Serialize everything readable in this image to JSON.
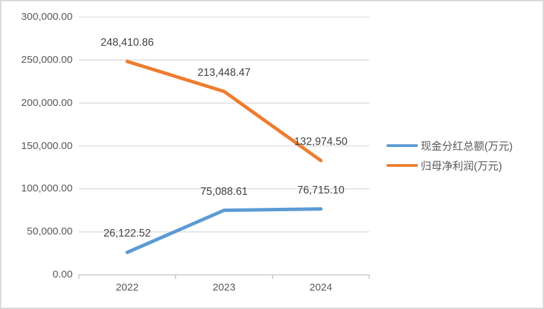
{
  "colors": {
    "series_blue": "#5B9BD5",
    "series_orange": "#ED7D31",
    "gridline": "#D9D9D9",
    "axis_line": "#BFBFBF",
    "axis_text": "#595959",
    "data_label_text": "#404040",
    "frame_border": "#D9D9D9",
    "background": "#FFFFFF"
  },
  "chart_data": {
    "type": "line",
    "title": "",
    "xlabel": "",
    "ylabel": "",
    "categories": [
      "2022",
      "2023",
      "2024"
    ],
    "series": [
      {
        "name": "现金分红总额(万元)",
        "color": "#5B9BD5",
        "values": [
          26122.52,
          75088.61,
          76715.1
        ],
        "labels": [
          "26,122.52",
          "75,088.61",
          "76,715.10"
        ]
      },
      {
        "name": "归母净利润(万元)",
        "color": "#ED7D31",
        "values": [
          248410.86,
          213448.47,
          132974.5
        ],
        "labels": [
          "248,410.86",
          "213,448.47",
          "132,974.50"
        ]
      }
    ],
    "y_axis": {
      "min": 0,
      "max": 300000,
      "step": 50000,
      "tick_labels": [
        "0.00",
        "50,000.00",
        "100,000.00",
        "150,000.00",
        "200,000.00",
        "250,000.00",
        "300,000.00"
      ]
    },
    "grid": true,
    "legend_position": "right",
    "data_labels_position": "above"
  }
}
